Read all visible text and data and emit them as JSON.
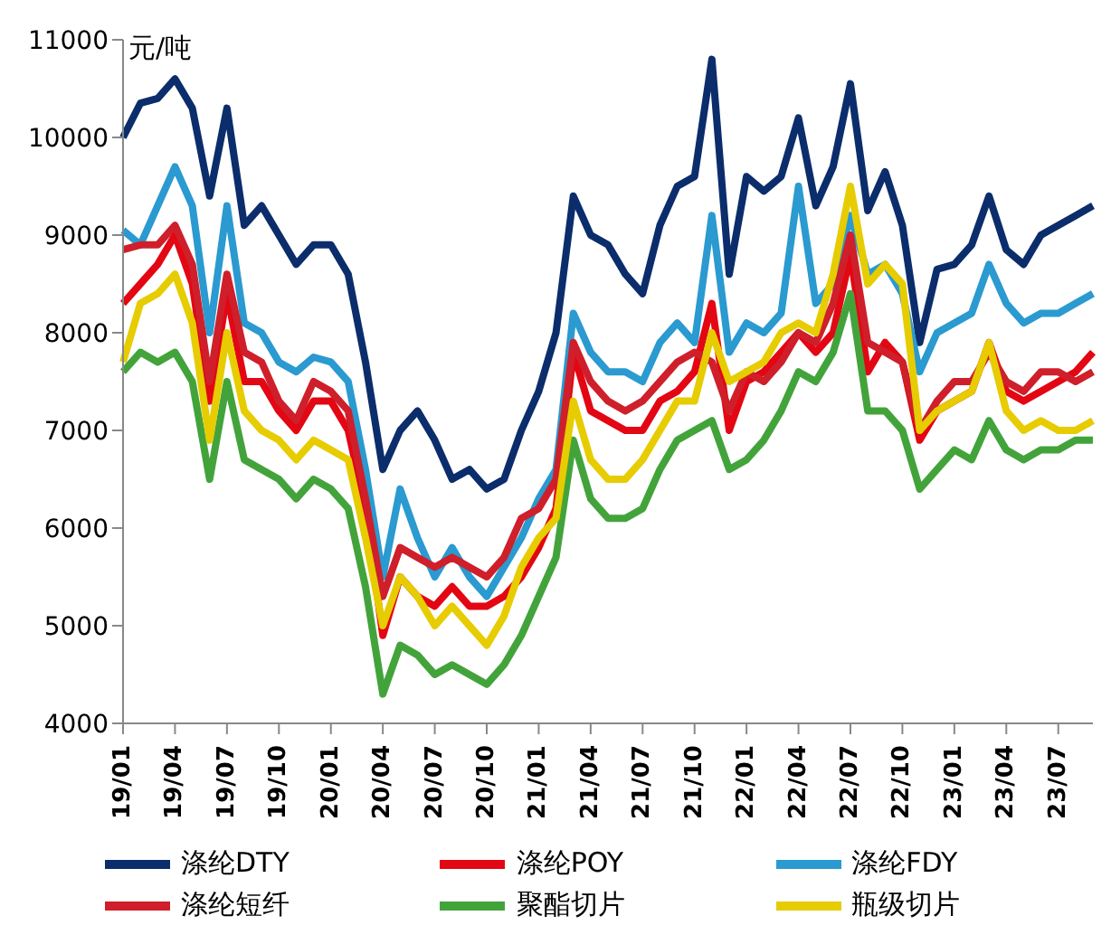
{
  "chart_data": {
    "type": "line",
    "ylabel": "元/吨",
    "categories": [
      "19/01",
      null,
      null,
      "19/04",
      null,
      null,
      "19/07",
      null,
      null,
      "19/10",
      null,
      null,
      "20/01",
      null,
      null,
      "20/04",
      null,
      null,
      "20/07",
      null,
      null,
      "20/10",
      null,
      null,
      "21/01",
      null,
      null,
      "21/04",
      null,
      null,
      "21/07",
      null,
      null,
      "21/10",
      null,
      null,
      "22/01",
      null,
      null,
      "22/04",
      null,
      null,
      "22/07",
      null,
      null,
      "22/10",
      null,
      null,
      "23/01",
      null,
      null,
      "23/04",
      null,
      null,
      "23/07",
      null,
      null
    ],
    "series": [
      {
        "name": "涤纶DTY",
        "color": "#0b2d6b",
        "values": [
          10000,
          10350,
          10400,
          10600,
          10300,
          9400,
          10300,
          9100,
          9300,
          9000,
          8700,
          8900,
          8900,
          8600,
          7700,
          6600,
          7000,
          7200,
          6900,
          6500,
          6600,
          6400,
          6500,
          7000,
          7400,
          8000,
          9400,
          9000,
          8900,
          8600,
          8400,
          9100,
          9500,
          9600,
          10800,
          8600,
          9600,
          9450,
          9600,
          10200,
          9300,
          9700,
          10550,
          9250,
          9650,
          9100,
          7900,
          8650,
          8700,
          8900,
          9400,
          8850,
          8700,
          9000,
          9100,
          9200,
          9300
        ]
      },
      {
        "name": "涤纶POY",
        "color": "#e30613",
        "values": [
          8300,
          8500,
          8700,
          9000,
          8500,
          7300,
          8400,
          7500,
          7500,
          7200,
          7000,
          7300,
          7300,
          7000,
          6200,
          4900,
          5500,
          5300,
          5200,
          5400,
          5200,
          5200,
          5300,
          5500,
          5800,
          6200,
          7800,
          7200,
          7100,
          7000,
          7000,
          7300,
          7400,
          7600,
          8300,
          7000,
          7500,
          7600,
          7800,
          8000,
          7800,
          8000,
          8800,
          7600,
          7900,
          7700,
          6900,
          7200,
          7300,
          7400,
          7900,
          7400,
          7300,
          7400,
          7500,
          7600,
          7800
        ]
      },
      {
        "name": "涤纶FDY",
        "color": "#2a9ad0",
        "values": [
          9050,
          8900,
          9300,
          9700,
          9300,
          8000,
          9300,
          8100,
          8000,
          7700,
          7600,
          7750,
          7700,
          7500,
          6600,
          5500,
          6400,
          5900,
          5500,
          5800,
          5500,
          5300,
          5600,
          5900,
          6300,
          6600,
          8200,
          7800,
          7600,
          7600,
          7500,
          7900,
          8100,
          7900,
          9200,
          7800,
          8100,
          8000,
          8200,
          9500,
          8300,
          8500,
          9200,
          8600,
          8700,
          8400,
          7600,
          8000,
          8100,
          8200,
          8700,
          8300,
          8100,
          8200,
          8200,
          8300,
          8400
        ]
      },
      {
        "name": "涤纶短纤",
        "color": "#cf1f2a",
        "values": [
          8850,
          8900,
          8900,
          9100,
          8700,
          7500,
          8600,
          7800,
          7700,
          7300,
          7100,
          7500,
          7400,
          7200,
          6300,
          5300,
          5800,
          5700,
          5600,
          5700,
          5600,
          5500,
          5700,
          6100,
          6200,
          6500,
          7900,
          7500,
          7300,
          7200,
          7300,
          7500,
          7700,
          7800,
          7700,
          7200,
          7600,
          7500,
          7700,
          8000,
          7900,
          8300,
          9000,
          7900,
          7800,
          7700,
          7000,
          7300,
          7500,
          7500,
          7800,
          7500,
          7400,
          7600,
          7600,
          7500,
          7600
        ]
      },
      {
        "name": "聚酯切片",
        "color": "#43a33b",
        "values": [
          7600,
          7800,
          7700,
          7800,
          7500,
          6500,
          7500,
          6700,
          6600,
          6500,
          6300,
          6500,
          6400,
          6200,
          5400,
          4300,
          4800,
          4700,
          4500,
          4600,
          4500,
          4400,
          4600,
          4900,
          5300,
          5700,
          6900,
          6300,
          6100,
          6100,
          6200,
          6600,
          6900,
          7000,
          7100,
          6600,
          6700,
          6900,
          7200,
          7600,
          7500,
          7800,
          8400,
          7200,
          7200,
          7000,
          6400,
          6600,
          6800,
          6700,
          7100,
          6800,
          6700,
          6800,
          6800,
          6900,
          6900
        ]
      },
      {
        "name": "瓶级切片",
        "color": "#e6cc00",
        "values": [
          7700,
          8300,
          8400,
          8600,
          8100,
          6900,
          8000,
          7200,
          7000,
          6900,
          6700,
          6900,
          6800,
          6700,
          5900,
          5000,
          5500,
          5300,
          5000,
          5200,
          5000,
          4800,
          5100,
          5600,
          5900,
          6100,
          7300,
          6700,
          6500,
          6500,
          6700,
          7000,
          7300,
          7300,
          8000,
          7500,
          7600,
          7700,
          8000,
          8100,
          8000,
          8600,
          9500,
          8500,
          8700,
          8500,
          7000,
          7200,
          7300,
          7400,
          7900,
          7200,
          7000,
          7100,
          7000,
          7000,
          7100
        ]
      }
    ],
    "ylim": [
      4000,
      11000
    ],
    "yticks": [
      4000,
      5000,
      6000,
      7000,
      8000,
      9000,
      10000,
      11000
    ],
    "grid": false,
    "legend": "bottom",
    "marker": "none",
    "line_style": "solid"
  }
}
